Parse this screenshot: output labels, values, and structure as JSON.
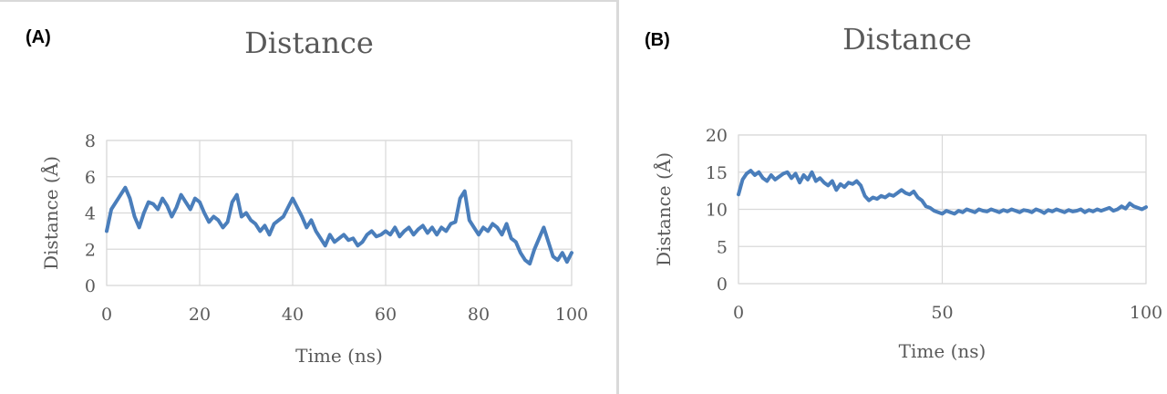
{
  "chart_data": [
    {
      "type": "line",
      "panel_label": "(A)",
      "title": "Distance",
      "xlabel": "Time (ns)",
      "ylabel": "Distance (Å)",
      "xlim": [
        0,
        100
      ],
      "ylim": [
        0,
        8
      ],
      "xticks": [
        "0",
        "20",
        "40",
        "60",
        "80",
        "100"
      ],
      "yticks": [
        "0",
        "2",
        "4",
        "6",
        "8"
      ],
      "grid": true,
      "color": "#4a7ebb",
      "series": [
        {
          "x": [
            0,
            1,
            2,
            3,
            4,
            5,
            6,
            7,
            8,
            9,
            10,
            11,
            12,
            13,
            14,
            15,
            16,
            17,
            18,
            19,
            20,
            21,
            22,
            23,
            24,
            25,
            26,
            27,
            28,
            29,
            30,
            31,
            32,
            33,
            34,
            35,
            36,
            37,
            38,
            39,
            40,
            41,
            42,
            43,
            44,
            45,
            46,
            47,
            48,
            49,
            50,
            51,
            52,
            53,
            54,
            55,
            56,
            57,
            58,
            59,
            60,
            61,
            62,
            63,
            64,
            65,
            66,
            67,
            68,
            69,
            70,
            71,
            72,
            73,
            74,
            75,
            76,
            77,
            78,
            79,
            80,
            81,
            82,
            83,
            84,
            85,
            86,
            87,
            88,
            89,
            90,
            91,
            92,
            93,
            94,
            95,
            96,
            97,
            98,
            99,
            100
          ],
          "values": [
            3.0,
            4.2,
            4.6,
            5.0,
            5.4,
            4.8,
            3.8,
            3.2,
            4.0,
            4.6,
            4.5,
            4.2,
            4.8,
            4.4,
            3.8,
            4.3,
            5.0,
            4.6,
            4.2,
            4.8,
            4.6,
            4.0,
            3.5,
            3.8,
            3.6,
            3.2,
            3.5,
            4.6,
            5.0,
            3.8,
            4.0,
            3.6,
            3.4,
            3.0,
            3.3,
            2.8,
            3.4,
            3.6,
            3.8,
            4.3,
            4.8,
            4.3,
            3.8,
            3.2,
            3.6,
            3.0,
            2.6,
            2.2,
            2.8,
            2.4,
            2.6,
            2.8,
            2.5,
            2.6,
            2.2,
            2.4,
            2.8,
            3.0,
            2.7,
            2.8,
            3.0,
            2.8,
            3.2,
            2.7,
            3.0,
            3.2,
            2.8,
            3.1,
            3.3,
            2.9,
            3.2,
            2.8,
            3.2,
            3.0,
            3.4,
            3.5,
            4.8,
            5.2,
            3.6,
            3.2,
            2.8,
            3.2,
            3.0,
            3.4,
            3.2,
            2.8,
            3.4,
            2.6,
            2.4,
            1.8,
            1.4,
            1.2,
            2.0,
            2.6,
            3.2,
            2.4,
            1.6,
            1.4,
            1.8,
            1.3,
            1.8
          ]
        }
      ]
    },
    {
      "type": "line",
      "panel_label": "(B)",
      "title": "Distance",
      "xlabel": "Time (ns)",
      "ylabel": "Distance (Å)",
      "xlim": [
        0,
        100
      ],
      "ylim": [
        0,
        20
      ],
      "xticks": [
        "0",
        "50",
        "100"
      ],
      "yticks": [
        "0",
        "5",
        "10",
        "15",
        "20"
      ],
      "grid": true,
      "color": "#4a7ebb",
      "series": [
        {
          "x": [
            0,
            1,
            2,
            3,
            4,
            5,
            6,
            7,
            8,
            9,
            10,
            11,
            12,
            13,
            14,
            15,
            16,
            17,
            18,
            19,
            20,
            21,
            22,
            23,
            24,
            25,
            26,
            27,
            28,
            29,
            30,
            31,
            32,
            33,
            34,
            35,
            36,
            37,
            38,
            39,
            40,
            41,
            42,
            43,
            44,
            45,
            46,
            47,
            48,
            49,
            50,
            51,
            52,
            53,
            54,
            55,
            56,
            57,
            58,
            59,
            60,
            61,
            62,
            63,
            64,
            65,
            66,
            67,
            68,
            69,
            70,
            71,
            72,
            73,
            74,
            75,
            76,
            77,
            78,
            79,
            80,
            81,
            82,
            83,
            84,
            85,
            86,
            87,
            88,
            89,
            90,
            91,
            92,
            93,
            94,
            95,
            96,
            97,
            98,
            99,
            100
          ],
          "values": [
            12.0,
            14.0,
            14.8,
            15.2,
            14.6,
            15.0,
            14.2,
            13.8,
            14.6,
            14.0,
            14.4,
            14.8,
            15.0,
            14.2,
            14.8,
            13.6,
            14.6,
            14.0,
            15.0,
            13.8,
            14.2,
            13.6,
            13.2,
            13.8,
            12.6,
            13.4,
            13.0,
            13.6,
            13.4,
            13.8,
            13.2,
            11.8,
            11.2,
            11.6,
            11.4,
            11.8,
            11.6,
            12.0,
            11.8,
            12.2,
            12.6,
            12.2,
            12.0,
            12.4,
            11.6,
            11.2,
            10.4,
            10.2,
            9.8,
            9.6,
            9.4,
            9.8,
            9.6,
            9.4,
            9.8,
            9.6,
            10.0,
            9.8,
            9.6,
            10.0,
            9.8,
            9.7,
            10.0,
            9.8,
            9.6,
            9.9,
            9.7,
            10.0,
            9.8,
            9.6,
            9.9,
            9.8,
            9.6,
            10.0,
            9.8,
            9.5,
            9.9,
            9.7,
            10.0,
            9.8,
            9.6,
            9.9,
            9.7,
            9.8,
            10.0,
            9.6,
            9.9,
            9.7,
            10.0,
            9.8,
            10.0,
            10.2,
            9.8,
            10.0,
            10.4,
            10.1,
            10.8,
            10.4,
            10.2,
            10.0,
            10.3
          ]
        }
      ]
    }
  ]
}
